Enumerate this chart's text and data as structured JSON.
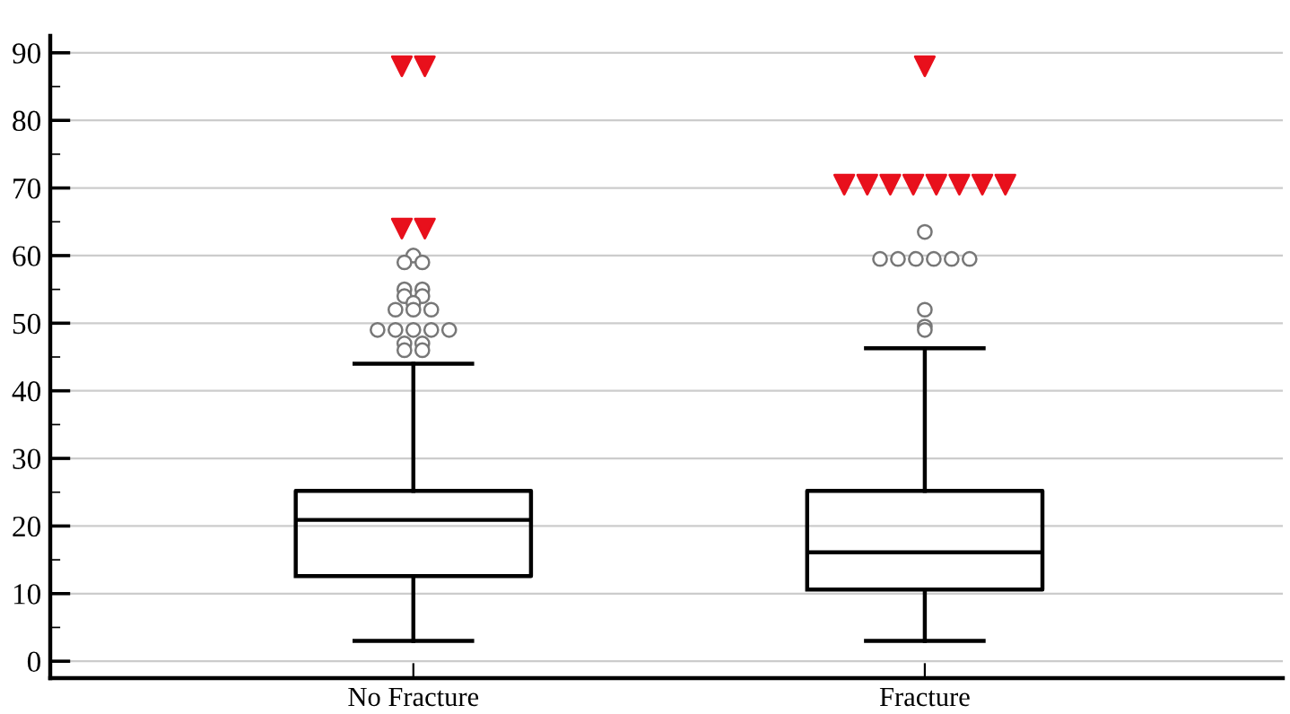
{
  "chart_data": {
    "type": "box",
    "categories": [
      "No Fracture",
      "Fracture"
    ],
    "boxes": [
      {
        "low": 3,
        "q1": 12.6,
        "median": 20.9,
        "q3": 25.2,
        "high": 44,
        "outliers": [
          60,
          59,
          59,
          55,
          55,
          54,
          54,
          53,
          52,
          52,
          52,
          49,
          49,
          49,
          49,
          49,
          47,
          47,
          46,
          46
        ]
      },
      {
        "low": 3,
        "q1": 10.6,
        "median": 16.1,
        "q3": 25.2,
        "high": 46.3,
        "outliers": [
          63.5,
          59.5,
          59.5,
          59.5,
          59.5,
          59.5,
          59.5,
          52,
          49.5,
          49
        ]
      }
    ],
    "series": [
      {
        "type": "scatter",
        "color": "#e8101c",
        "marker": "triangle",
        "x": [
          "No Fracture",
          "No Fracture",
          "No Fracture",
          "No Fracture",
          "Fracture",
          "Fracture",
          "Fracture",
          "Fracture",
          "Fracture",
          "Fracture",
          "Fracture",
          "Fracture",
          "Fracture"
        ],
        "values": [
          88,
          88,
          64,
          64,
          88,
          70.5,
          70.5,
          70.5,
          70.5,
          70.5,
          70.5,
          70.5,
          70.5
        ]
      }
    ],
    "ylim": [
      -2.5,
      92.5
    ],
    "yticks": [
      0,
      {
        "value": 5,
        "label": null
      },
      10,
      {
        "value": 15,
        "label": null
      },
      20,
      {
        "value": 25,
        "label": null
      },
      30,
      {
        "value": 35,
        "label": null
      },
      40,
      {
        "value": 45,
        "label": null
      },
      50,
      {
        "value": 55,
        "label": null
      },
      60,
      {
        "value": 65,
        "label": null
      },
      70,
      {
        "value": 75,
        "label": null
      },
      80,
      {
        "value": 85,
        "label": null
      },
      90
    ],
    "grid": "y",
    "legend": false
  }
}
